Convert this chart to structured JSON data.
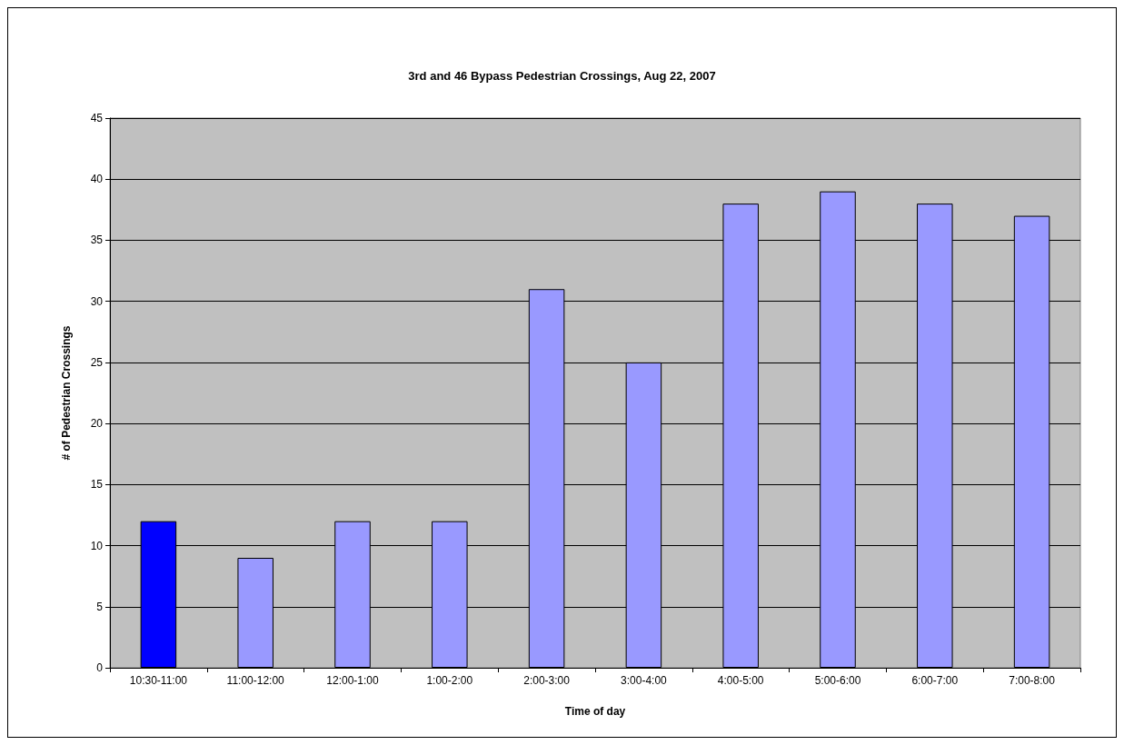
{
  "chart_data": {
    "type": "bar",
    "title": "3rd and 46 Bypass Pedestrian Crossings, Aug 22, 2007",
    "xlabel": "Time of day",
    "ylabel": "# of Pedestrian Crossings",
    "categories": [
      "10:30-11:00",
      "11:00-12:00",
      "12:00-1:00",
      "1:00-2:00",
      "2:00-3:00",
      "3:00-4:00",
      "4:00-5:00",
      "5:00-6:00",
      "6:00-7:00",
      "7:00-8:00"
    ],
    "values": [
      12,
      9,
      12,
      12,
      31,
      25,
      38,
      39,
      38,
      37
    ],
    "colors": [
      "#0000ff",
      "#9999ff",
      "#9999ff",
      "#9999ff",
      "#9999ff",
      "#9999ff",
      "#9999ff",
      "#9999ff",
      "#9999ff",
      "#9999ff"
    ],
    "ylim": [
      0,
      45
    ],
    "yticks": [
      0,
      5,
      10,
      15,
      20,
      25,
      30,
      35,
      40,
      45
    ],
    "grid": "y"
  }
}
